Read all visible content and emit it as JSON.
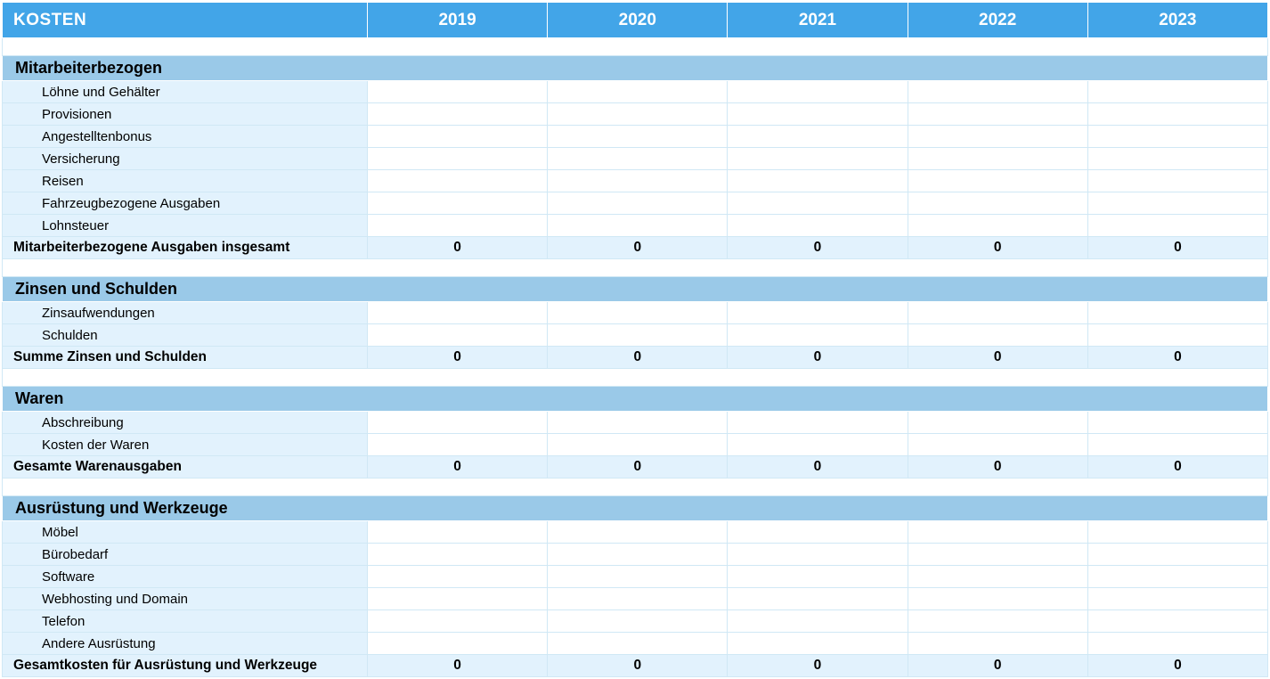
{
  "header": {
    "title": "KOSTEN",
    "years": [
      "2019",
      "2020",
      "2021",
      "2022",
      "2023"
    ]
  },
  "sections": [
    {
      "name": "Mitarbeiterbezogen",
      "items": [
        "Löhne und Gehälter",
        "Provisionen",
        "Angestelltenbonus",
        "Versicherung",
        "Reisen",
        "Fahrzeugbezogene Ausgaben",
        "Lohnsteuer"
      ],
      "total_label": "Mitarbeiterbezogene Ausgaben insgesamt",
      "totals": [
        "0",
        "0",
        "0",
        "0",
        "0"
      ]
    },
    {
      "name": "Zinsen und Schulden",
      "items": [
        "Zinsaufwendungen",
        "Schulden"
      ],
      "total_label": "Summe Zinsen und Schulden",
      "totals": [
        "0",
        "0",
        "0",
        "0",
        "0"
      ]
    },
    {
      "name": "Waren",
      "items": [
        "Abschreibung",
        "Kosten der Waren"
      ],
      "total_label": "Gesamte Warenausgaben",
      "totals": [
        "0",
        "0",
        "0",
        "0",
        "0"
      ]
    },
    {
      "name": "Ausrüstung und Werkzeuge",
      "items": [
        "Möbel",
        "Bürobedarf",
        "Software",
        "Webhosting und Domain",
        "Telefon",
        "Andere Ausrüstung"
      ],
      "total_label": "Gesamtkosten für Ausrüstung und Werkzeuge",
      "totals": [
        "0",
        "0",
        "0",
        "0",
        "0"
      ]
    }
  ],
  "colors": {
    "header_bg": "#42a5e8",
    "header_text": "#ffffff",
    "section_bg": "#9ac9e8",
    "item_label_bg": "#e2f2fd",
    "value_bg": "#ffffff",
    "total_bg": "#e2f2fd",
    "border": "#d0e8f5"
  }
}
